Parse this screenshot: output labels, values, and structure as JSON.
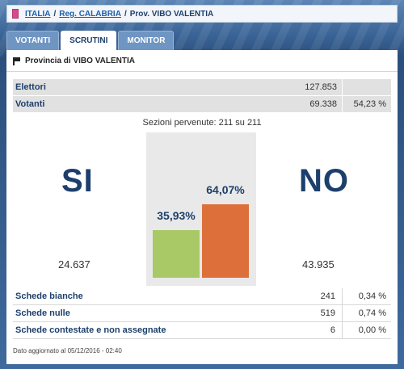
{
  "breadcrumb": {
    "items": [
      "ITALIA",
      "Reg. CALABRIA",
      "Prov. VIBO VALENTIA"
    ],
    "separator": "/"
  },
  "tabs": [
    {
      "label": "VOTANTI",
      "active": false
    },
    {
      "label": "SCRUTINI",
      "active": true
    },
    {
      "label": "MONITOR",
      "active": false
    }
  ],
  "province": {
    "title": "Provincia di VIBO VALENTIA"
  },
  "stats": {
    "elettori": {
      "label": "Elettori",
      "value": "127.853",
      "pct": ""
    },
    "votanti": {
      "label": "Votanti",
      "value": "69.338",
      "pct": "54,23 %"
    }
  },
  "sezioni": "Sezioni pervenute: 211 su 211",
  "result": {
    "si": {
      "label": "SI",
      "votes": "24.637",
      "pct_label": "35,93%",
      "pct": 35.93
    },
    "no": {
      "label": "NO",
      "votes": "43.935",
      "pct_label": "64,07%",
      "pct": 64.07
    }
  },
  "schede": [
    {
      "label": "Schede bianche",
      "value": "241",
      "pct": "0,34 %"
    },
    {
      "label": "Schede nulle",
      "value": "519",
      "pct": "0,74 %"
    },
    {
      "label": "Schede contestate e non assegnate",
      "value": "6",
      "pct": "0,00 %"
    }
  ],
  "updated": "Dato aggiornato al 05/12/2016 - 02:40",
  "colors": {
    "si_bar": "#a8c965",
    "no_bar": "#dd703a",
    "accent": "#1d3f6b"
  }
}
